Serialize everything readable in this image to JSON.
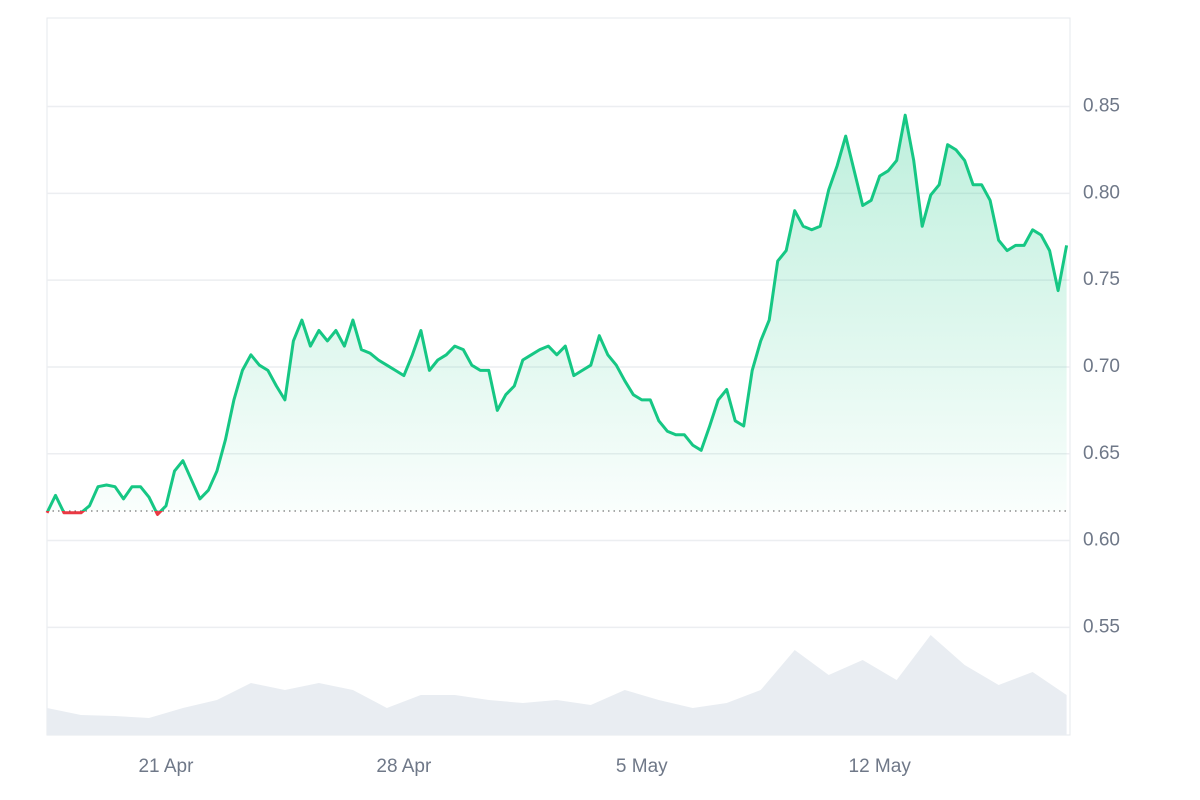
{
  "chart_data": {
    "type": "line",
    "x": [
      17.5,
      17.75,
      18,
      18.25,
      18.5,
      18.75,
      19,
      19.25,
      19.5,
      19.75,
      20,
      20.25,
      20.5,
      20.75,
      21,
      21.25,
      21.5,
      21.75,
      22,
      22.25,
      22.5,
      22.75,
      23,
      23.25,
      23.5,
      23.75,
      24,
      24.25,
      24.5,
      24.75,
      25,
      25.25,
      25.5,
      25.75,
      26,
      26.25,
      26.5,
      26.75,
      27,
      27.25,
      27.5,
      27.75,
      28,
      28.25,
      28.5,
      28.75,
      29,
      29.25,
      29.5,
      29.75,
      30,
      30.25,
      30.5,
      30.75,
      31,
      31.25,
      31.5,
      31.75,
      32,
      32.25,
      32.5,
      32.75,
      33,
      33.25,
      33.5,
      33.75,
      34,
      34.25,
      34.5,
      34.75,
      35,
      35.25,
      35.5,
      35.75,
      36,
      36.25,
      36.5,
      36.75,
      37,
      37.25,
      37.5,
      37.75,
      38,
      38.25,
      38.5,
      38.75,
      39,
      39.25,
      39.5,
      39.75,
      40,
      40.25,
      40.5,
      40.75,
      41,
      41.25,
      41.5,
      41.75,
      42,
      42.25,
      42.5,
      42.75,
      43,
      43.25,
      43.5,
      43.75,
      44,
      44.25,
      44.5,
      44.75,
      45,
      45.25,
      45.5,
      45.75,
      46,
      46.25,
      46.5,
      46.75,
      47,
      47.25,
      47.5
    ],
    "values": [
      0.616,
      0.626,
      0.616,
      0.616,
      0.616,
      0.62,
      0.631,
      0.632,
      0.631,
      0.624,
      0.631,
      0.631,
      0.625,
      0.615,
      0.62,
      0.64,
      0.646,
      0.635,
      0.624,
      0.629,
      0.64,
      0.658,
      0.681,
      0.698,
      0.707,
      0.701,
      0.698,
      0.689,
      0.681,
      0.715,
      0.727,
      0.712,
      0.721,
      0.715,
      0.721,
      0.712,
      0.727,
      0.71,
      0.708,
      0.704,
      0.701,
      0.698,
      0.695,
      0.707,
      0.721,
      0.698,
      0.704,
      0.707,
      0.712,
      0.71,
      0.701,
      0.698,
      0.698,
      0.675,
      0.684,
      0.689,
      0.704,
      0.707,
      0.71,
      0.712,
      0.707,
      0.712,
      0.695,
      0.698,
      0.701,
      0.718,
      0.707,
      0.701,
      0.692,
      0.684,
      0.681,
      0.681,
      0.669,
      0.663,
      0.661,
      0.661,
      0.655,
      0.652,
      0.666,
      0.681,
      0.687,
      0.669,
      0.666,
      0.698,
      0.715,
      0.727,
      0.761,
      0.767,
      0.79,
      0.781,
      0.779,
      0.781,
      0.802,
      0.816,
      0.833,
      0.813,
      0.793,
      0.796,
      0.81,
      0.813,
      0.819,
      0.845,
      0.819,
      0.781,
      0.799,
      0.805,
      0.828,
      0.825,
      0.819,
      0.805,
      0.805,
      0.796,
      0.773,
      0.767,
      0.77,
      0.77,
      0.779,
      0.776,
      0.767,
      0.744,
      0.77
    ],
    "color": "#16c784",
    "down_color": "#ea3943",
    "baseline": 0.617,
    "xlim": [
      17.5,
      47.6
    ],
    "ylim": [
      0.488,
      0.901
    ],
    "xticks": [
      {
        "value": 21,
        "label": "21 Apr"
      },
      {
        "value": 28,
        "label": "28 Apr"
      },
      {
        "value": 35,
        "label": "5 May"
      },
      {
        "value": 42,
        "label": "12 May"
      }
    ],
    "yticks": [
      0.55,
      {
        "value": 0.6,
        "label": "0.60"
      },
      0.65,
      {
        "value": 0.7,
        "label": "0.70"
      },
      0.75,
      {
        "value": 0.8,
        "label": "0.80"
      },
      0.85
    ],
    "grid": true,
    "volume": {
      "x": [
        17.5,
        18.5,
        19.5,
        20.5,
        21.5,
        22.5,
        23.5,
        24.5,
        25.5,
        26.5,
        27.5,
        28.5,
        29.5,
        30.5,
        31.5,
        32.5,
        33.5,
        34.5,
        35.5,
        36.5,
        37.5,
        38.5,
        39.5,
        40.5,
        41.5,
        42.5,
        43.5,
        44.5,
        45.5,
        46.5,
        47.5
      ],
      "values": [
        27,
        20,
        19,
        17,
        27,
        35,
        52,
        45,
        52,
        45,
        27,
        40,
        40,
        35,
        32,
        35,
        30,
        45,
        35,
        27,
        32,
        45,
        85,
        60,
        75,
        55,
        100,
        70,
        50,
        63,
        40
      ],
      "ylim": [
        0,
        100
      ],
      "color": "#e9edf2"
    }
  }
}
